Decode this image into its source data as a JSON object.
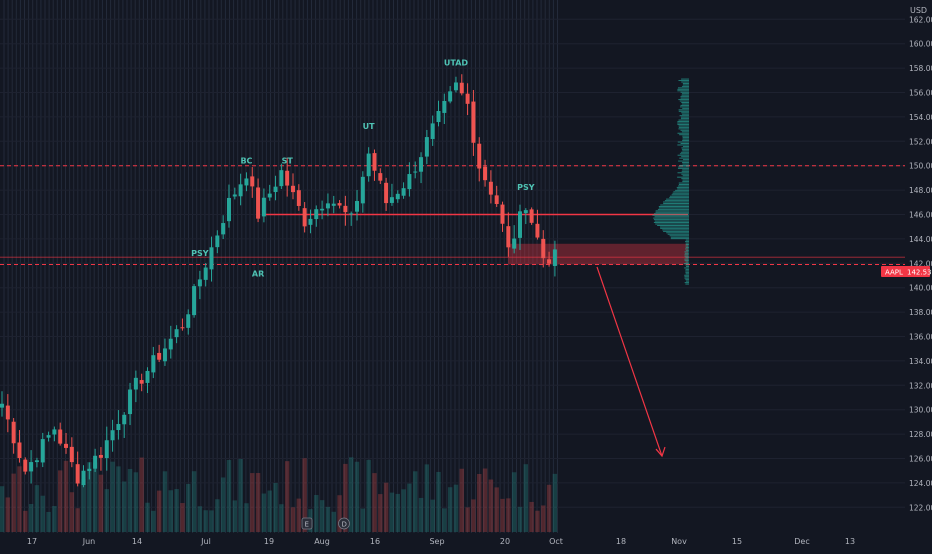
{
  "chart_data": {
    "type": "candlestick",
    "currency_label": "USD",
    "ticker_badge": {
      "symbol": "AAPL",
      "price": "142.53"
    },
    "colors": {
      "up": "#26a69a",
      "down": "#ef5350",
      "background": "#131722",
      "axis_text": "#b2b5be",
      "accent_line": "#f23645"
    },
    "y_axis": {
      "min": 121,
      "max": 164,
      "ticks": [
        "122.00",
        "124.00",
        "126.00",
        "128.00",
        "130.00",
        "132.00",
        "134.00",
        "136.00",
        "138.00",
        "140.00",
        "142.00",
        "144.00",
        "146.00",
        "148.00",
        "150.00",
        "152.00",
        "154.00",
        "156.00",
        "158.00",
        "160.00",
        "162.00"
      ]
    },
    "x_axis": {
      "labels": [
        "17",
        "Jun",
        "14",
        "Jul",
        "19",
        "Aug",
        "16",
        "Sep",
        "20",
        "Oct",
        "18",
        "Nov",
        "15",
        "Dec",
        "13"
      ]
    },
    "candles_summary": {
      "start_price": 130.5,
      "end_price": 142.5,
      "count": 96
    },
    "anchors": [
      {
        "index": 0,
        "price": 130.5
      },
      {
        "index": 4,
        "price": 125.0
      },
      {
        "index": 9,
        "price": 128.5
      },
      {
        "index": 13,
        "price": 124.5
      },
      {
        "index": 17,
        "price": 126.5
      },
      {
        "index": 23,
        "price": 132.0
      },
      {
        "index": 27,
        "price": 134.5
      },
      {
        "index": 31,
        "price": 137.0
      },
      {
        "index": 35,
        "price": 142.0
      },
      {
        "index": 39,
        "price": 147.0
      },
      {
        "index": 42,
        "price": 149.5
      },
      {
        "index": 44,
        "price": 146.0
      },
      {
        "index": 48,
        "price": 149.5
      },
      {
        "index": 52,
        "price": 145.5
      },
      {
        "index": 56,
        "price": 147.5
      },
      {
        "index": 60,
        "price": 145.5
      },
      {
        "index": 63,
        "price": 151.0
      },
      {
        "index": 66,
        "price": 147.0
      },
      {
        "index": 70,
        "price": 149.0
      },
      {
        "index": 74,
        "price": 153.0
      },
      {
        "index": 78,
        "price": 156.5
      },
      {
        "index": 80,
        "price": 155.0
      },
      {
        "index": 82,
        "price": 150.0
      },
      {
        "index": 85,
        "price": 147.0
      },
      {
        "index": 87,
        "price": 143.0
      },
      {
        "index": 90,
        "price": 147.0
      },
      {
        "index": 93,
        "price": 142.5
      },
      {
        "index": 95,
        "price": 142.5
      }
    ],
    "annotations": [
      {
        "label": "PSY",
        "index": 34,
        "price": 142.6
      },
      {
        "label": "BC",
        "index": 42,
        "price": 150.2
      },
      {
        "label": "ST",
        "index": 49,
        "price": 150.2
      },
      {
        "label": "AR",
        "index": 44,
        "price": 140.9
      },
      {
        "label": "UT",
        "index": 63,
        "price": 153.0
      },
      {
        "label": "UTAD",
        "index": 78,
        "price": 158.2
      },
      {
        "label": "PSY",
        "index": 90,
        "price": 148.0
      }
    ],
    "levels": [
      {
        "name": "dashed-upper",
        "price": 150.0
      },
      {
        "name": "dashed-lower",
        "price": 141.9
      },
      {
        "name": "solid-resistance",
        "price": 146.0
      },
      {
        "name": "price-line",
        "price": 142.5
      }
    ],
    "zone": {
      "low": 141.9,
      "high": 143.6
    },
    "projection": {
      "from": 141.7,
      "to": 126.2
    },
    "volume_profile": {
      "price_low": 140.3,
      "price_high": 157.2
    }
  }
}
